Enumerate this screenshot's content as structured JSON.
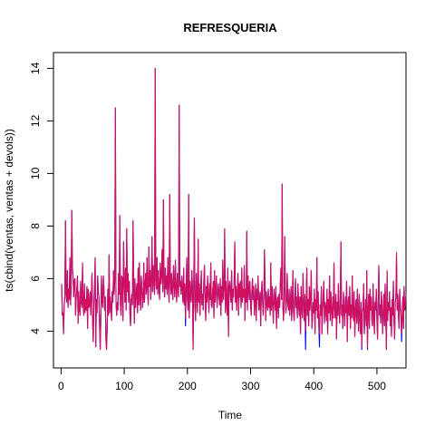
{
  "chart_data": {
    "type": "line",
    "title": "REFRESQUERIA",
    "xlabel": "Time",
    "ylabel": "ts(cbind(ventas, ventas + devols))",
    "xlim": [
      -12,
      546
    ],
    "ylim": [
      2.6,
      14.6
    ],
    "x_ticks": [
      0,
      100,
      200,
      300,
      400,
      500
    ],
    "y_ticks": [
      4,
      6,
      8,
      10,
      12,
      14
    ],
    "grid": false,
    "legend": "none",
    "x_start": 1,
    "series": [
      {
        "color": "#0000ff",
        "values": [
          5.8,
          4.6,
          4.7,
          3.9,
          5.0,
          5.3,
          8.2,
          5.4,
          5.1,
          6.3,
          4.9,
          5.6,
          5.2,
          6.8,
          5.0,
          5.8,
          8.6,
          6.4,
          6.1,
          5.3,
          5.9,
          6.0,
          4.6,
          5.3,
          5.6,
          6.1,
          4.3,
          5.5,
          4.8,
          4.6,
          5.9,
          5.1,
          4.9,
          6.6,
          5.0,
          4.6,
          5.8,
          4.7,
          5.2,
          4.8,
          5.7,
          4.1,
          5.6,
          4.9,
          5.0,
          5.5,
          4.6,
          5.4,
          6.2,
          4.3,
          3.6,
          5.1,
          5.7,
          6.8,
          3.4,
          5.2,
          4.7,
          6.1,
          5.5,
          5.3,
          4.2,
          3.3,
          4.5,
          6.1,
          5.1,
          4.9,
          6.1,
          5.6,
          4.8,
          5.3,
          3.7,
          3.3,
          4.1,
          5.6,
          4.6,
          6.9,
          4.7,
          5.3,
          5.0,
          4.4,
          5.5,
          5.1,
          6.3,
          5.4,
          5.9,
          12.5,
          5.1,
          4.6,
          5.1,
          4.8,
          6.2,
          5.4,
          8.4,
          5.0,
          4.6,
          6.1,
          6.0,
          4.4,
          7.4,
          5.9,
          5.1,
          6.4,
          4.8,
          7.9,
          5.5,
          6.2,
          5.1,
          5.9,
          4.7,
          4.2,
          5.2,
          5.4,
          5.0,
          8.2,
          5.8,
          4.3,
          6.0,
          4.9,
          5.4,
          5.8,
          4.7,
          6.4,
          5.0,
          6.6,
          5.3,
          4.8,
          6.1,
          5.6,
          4.9,
          5.2,
          6.6,
          5.1,
          5.7,
          6.2,
          5.4,
          6.8,
          5.6,
          5.0,
          7.2,
          5.7,
          6.3,
          5.2,
          5.9,
          7.6,
          5.5,
          6.5,
          5.8,
          5.4,
          14.0,
          5.9,
          5.6,
          6.8,
          5.4,
          6.3,
          5.7,
          5.2,
          6.6,
          5.8,
          6.1,
          7.1,
          5.5,
          9.0,
          5.8,
          5.3,
          6.4,
          5.6,
          6.1,
          5.4,
          6.8,
          5.7,
          5.1,
          9.2,
          5.9,
          5.4,
          6.2,
          5.6,
          5.2,
          6.5,
          5.8,
          5.3,
          6.7,
          5.6,
          5.1,
          6.2,
          5.7,
          5.3,
          12.6,
          5.7,
          5.9,
          5.4,
          6.1,
          5.6,
          5.1,
          6.4,
          5.0,
          5.8,
          4.2,
          5.6,
          6.8,
          5.2,
          4.8,
          9.2,
          4.5,
          5.9,
          5.4,
          5.1,
          6.3,
          5.7,
          3.3,
          5.6,
          8.3,
          5.0,
          4.4,
          6.2,
          5.3,
          4.7,
          7.5,
          5.1,
          5.8,
          4.6,
          5.5,
          6.3,
          5.0,
          5.4,
          4.8,
          5.9,
          6.5,
          5.3,
          4.4,
          5.7,
          5.1,
          6.1,
          5.4,
          4.7,
          5.8,
          5.2,
          6.6,
          5.0,
          4.9,
          5.5,
          5.9,
          4.5,
          6.3,
          5.1,
          5.7,
          6.1,
          4.9,
          5.4,
          5.8,
          5.3,
          5.0,
          6.0,
          4.6,
          5.7,
          5.1,
          6.7,
          5.2,
          5.6,
          7.9,
          4.7,
          5.9,
          5.2,
          4.6,
          6.4,
          3.8,
          5.7,
          5.9,
          5.4,
          5.1,
          6.3,
          4.8,
          5.6,
          5.3,
          5.9,
          7.4,
          5.1,
          5.7,
          4.8,
          5.5,
          6.2,
          4.6,
          5.8,
          5.3,
          5.9,
          4.9,
          6.4,
          5.1,
          5.6,
          5.3,
          6.5,
          4.4,
          5.6,
          5.1,
          7.8,
          4.8,
          6.1,
          5.6,
          5.2,
          5.9,
          5.0,
          4.6,
          5.5,
          6.0,
          5.2,
          5.7,
          4.6,
          5.0,
          5.8,
          4.4,
          5.6,
          5.2,
          6.1,
          4.8,
          5.0,
          5.5,
          4.2,
          5.4,
          5.9,
          5.1,
          4.6,
          5.3,
          7.1,
          5.7,
          4.4,
          5.5,
          5.0,
          4.8,
          5.6,
          4.9,
          5.3,
          4.6,
          6.6,
          4.8,
          5.7,
          5.0,
          4.3,
          5.6,
          5.2,
          4.8,
          5.7,
          4.1,
          5.1,
          5.3,
          4.5,
          5.4,
          4.9,
          5.8,
          6.4,
          5.2,
          9.6,
          5.1,
          4.4,
          4.9,
          7.6,
          5.5,
          4.7,
          5.2,
          6.2,
          5.0,
          4.8,
          5.6,
          4.6,
          5.0,
          5.7,
          4.4,
          5.1,
          6.3,
          4.7,
          4.4,
          5.2,
          6.0,
          4.9,
          5.3,
          4.5,
          5.8,
          5.0,
          4.6,
          5.3,
          3.9,
          5.7,
          4.9,
          4.5,
          6.2,
          5.1,
          4.4,
          5.4,
          3.3,
          5.0,
          6.4,
          4.6,
          5.2,
          4.2,
          5.7,
          4.8,
          5.3,
          6.3,
          4.1,
          4.5,
          5.1,
          4.7,
          5.6,
          3.9,
          5.2,
          4.8,
          6.8,
          4.5,
          5.5,
          4.2,
          3.4,
          5.0,
          4.6,
          5.7,
          3.9,
          4.8,
          5.4,
          5.9,
          4.3,
          5.1,
          4.9,
          4.4,
          5.6,
          3.9,
          5.2,
          4.7,
          6.1,
          4.4,
          5.5,
          4.8,
          4.2,
          5.3,
          4.5,
          6.6,
          4.9,
          4.5,
          5.4,
          3.7,
          5.1,
          4.6,
          5.8,
          4.8,
          4.3,
          5.2,
          7.4,
          4.6,
          5.0,
          4.1,
          5.5,
          4.8,
          4.2,
          5.3,
          4.7,
          5.9,
          3.6,
          4.9,
          5.3,
          4.6,
          5.7,
          4.1,
          5.0,
          4.5,
          6.1,
          4.7,
          4.4,
          5.5,
          3.8,
          4.8,
          5.2,
          4.3,
          5.6,
          4.7,
          4.0,
          5.4,
          4.6,
          3.9,
          5.1,
          3.3,
          4.7,
          4.9,
          5.8,
          3.9,
          4.6,
          5.2,
          4.2,
          6.3,
          3.3,
          4.7,
          5.4,
          4.1,
          5.6,
          4.8,
          5.3,
          4.4,
          4.2,
          5.8,
          4.6,
          3.9,
          5.1,
          4.8,
          5.6,
          4.4,
          3.7,
          5.2,
          6.5,
          4.6,
          5.0,
          4.3,
          5.5,
          5.0,
          3.9,
          4.7,
          5.4,
          4.2,
          5.8,
          4.5,
          3.3,
          6.3,
          4.4,
          5.1,
          4.8,
          5.5,
          4.2,
          4.9,
          3.8,
          5.2,
          4.6,
          5.9,
          4.4,
          3.7,
          5.1,
          5.3,
          6.9,
          4.8,
          5.4,
          4.6,
          4.1,
          5.6,
          5.0,
          4.7,
          3.6,
          4.5,
          5.3,
          4.1,
          5.7,
          4.8,
          5.0,
          5.4
        ]
      },
      {
        "color": "#e8114b",
        "values": [
          5.8,
          4.6,
          4.7,
          3.9,
          5.0,
          5.3,
          8.2,
          5.4,
          5.1,
          6.3,
          4.9,
          5.6,
          5.2,
          6.8,
          5.0,
          5.8,
          8.6,
          6.4,
          6.1,
          5.3,
          5.9,
          6.0,
          4.6,
          5.3,
          5.6,
          6.1,
          4.3,
          5.5,
          4.8,
          4.6,
          5.9,
          5.1,
          4.9,
          6.6,
          5.0,
          4.6,
          5.8,
          4.7,
          5.2,
          4.8,
          5.7,
          4.1,
          5.6,
          4.9,
          5.0,
          5.5,
          4.6,
          5.4,
          6.2,
          4.3,
          3.6,
          5.1,
          5.7,
          6.8,
          3.4,
          5.2,
          4.7,
          6.1,
          5.5,
          5.3,
          4.2,
          3.3,
          4.5,
          6.1,
          5.1,
          4.9,
          6.1,
          5.6,
          4.8,
          5.3,
          3.7,
          3.3,
          4.1,
          5.6,
          4.6,
          6.9,
          4.7,
          5.3,
          5.0,
          4.4,
          5.5,
          5.1,
          6.3,
          5.4,
          5.9,
          12.5,
          5.1,
          4.6,
          5.1,
          4.8,
          6.2,
          5.4,
          8.4,
          5.0,
          4.6,
          6.1,
          6.0,
          4.4,
          7.4,
          5.9,
          5.1,
          6.4,
          4.8,
          7.9,
          5.5,
          6.2,
          5.1,
          5.9,
          4.7,
          4.2,
          5.2,
          5.4,
          5.0,
          8.2,
          5.8,
          4.3,
          6.0,
          4.9,
          5.4,
          5.8,
          4.7,
          6.4,
          5.0,
          6.6,
          5.3,
          4.8,
          6.1,
          5.6,
          4.9,
          5.2,
          6.6,
          5.1,
          5.7,
          6.2,
          5.4,
          6.8,
          5.6,
          5.0,
          7.2,
          5.7,
          6.3,
          5.2,
          5.9,
          7.6,
          5.5,
          6.5,
          5.8,
          5.4,
          14.0,
          5.9,
          5.6,
          6.8,
          5.4,
          6.3,
          5.7,
          5.2,
          6.6,
          5.8,
          6.1,
          7.1,
          5.5,
          9.0,
          5.8,
          5.3,
          6.4,
          5.6,
          6.1,
          5.4,
          6.8,
          5.7,
          5.1,
          9.2,
          5.9,
          5.4,
          6.2,
          5.6,
          5.2,
          6.5,
          5.8,
          5.3,
          6.7,
          5.6,
          5.1,
          6.2,
          5.7,
          5.3,
          12.6,
          5.7,
          5.9,
          5.4,
          6.1,
          5.6,
          5.1,
          6.4,
          5.0,
          5.8,
          4.5,
          5.6,
          6.8,
          5.2,
          4.8,
          9.2,
          4.5,
          5.9,
          5.4,
          5.1,
          6.3,
          5.7,
          3.3,
          5.6,
          8.3,
          5.0,
          4.4,
          6.2,
          5.3,
          4.7,
          7.5,
          5.1,
          5.8,
          4.6,
          5.5,
          6.3,
          5.0,
          5.4,
          4.8,
          5.9,
          6.5,
          5.3,
          4.4,
          5.7,
          5.1,
          6.1,
          5.4,
          4.7,
          5.8,
          5.2,
          6.6,
          5.0,
          4.9,
          5.5,
          5.9,
          4.5,
          6.3,
          5.1,
          5.7,
          6.1,
          4.9,
          5.4,
          5.8,
          5.3,
          5.0,
          6.0,
          4.6,
          5.7,
          5.1,
          6.7,
          5.2,
          5.6,
          7.9,
          4.7,
          5.9,
          5.2,
          4.6,
          6.4,
          3.8,
          5.7,
          5.9,
          5.4,
          5.1,
          6.3,
          4.8,
          5.6,
          5.3,
          5.9,
          7.4,
          5.1,
          5.7,
          4.8,
          5.5,
          6.2,
          4.6,
          5.8,
          5.3,
          5.9,
          4.9,
          6.4,
          5.1,
          5.6,
          5.3,
          6.5,
          4.4,
          5.6,
          5.1,
          7.8,
          4.8,
          6.1,
          5.6,
          5.2,
          5.9,
          5.0,
          4.6,
          5.5,
          6.0,
          5.2,
          5.7,
          4.6,
          5.0,
          5.8,
          4.4,
          5.6,
          5.2,
          6.1,
          4.8,
          5.0,
          5.5,
          4.2,
          5.4,
          5.9,
          5.1,
          4.6,
          5.3,
          7.1,
          5.7,
          4.4,
          5.5,
          5.0,
          4.8,
          5.6,
          4.9,
          5.3,
          4.6,
          6.6,
          4.8,
          5.7,
          5.0,
          4.3,
          5.6,
          5.2,
          4.8,
          5.7,
          4.1,
          5.1,
          5.3,
          4.5,
          5.4,
          4.9,
          5.8,
          6.4,
          5.2,
          9.6,
          5.1,
          4.4,
          4.9,
          7.6,
          5.5,
          4.7,
          5.2,
          6.2,
          5.0,
          4.8,
          5.6,
          4.6,
          5.0,
          5.7,
          4.4,
          5.1,
          6.3,
          4.7,
          4.4,
          5.2,
          6.0,
          4.9,
          5.3,
          4.5,
          5.8,
          5.0,
          4.6,
          5.3,
          3.9,
          5.7,
          4.9,
          4.5,
          6.2,
          5.1,
          4.4,
          5.4,
          4.0,
          5.0,
          6.4,
          4.6,
          5.2,
          4.2,
          5.7,
          4.8,
          5.3,
          6.3,
          4.1,
          4.5,
          5.1,
          4.7,
          5.6,
          3.9,
          5.2,
          4.8,
          6.8,
          4.5,
          5.5,
          4.2,
          3.9,
          5.0,
          4.6,
          5.7,
          3.9,
          4.8,
          5.4,
          5.9,
          4.3,
          5.1,
          4.9,
          4.4,
          5.6,
          3.9,
          5.2,
          4.7,
          6.1,
          4.4,
          5.5,
          4.8,
          4.2,
          5.3,
          4.5,
          6.6,
          4.9,
          4.5,
          5.4,
          3.7,
          5.1,
          4.6,
          5.8,
          4.8,
          4.3,
          5.2,
          7.4,
          4.6,
          5.0,
          4.1,
          5.5,
          4.8,
          4.2,
          5.3,
          4.7,
          5.9,
          3.6,
          4.9,
          5.3,
          4.6,
          5.7,
          4.1,
          5.0,
          4.5,
          6.1,
          4.7,
          4.4,
          5.5,
          3.8,
          4.8,
          5.2,
          4.3,
          5.6,
          4.7,
          4.0,
          5.4,
          4.6,
          3.9,
          5.1,
          3.4,
          4.7,
          4.9,
          5.8,
          3.9,
          4.6,
          5.2,
          4.2,
          6.3,
          3.4,
          4.7,
          5.4,
          4.1,
          5.6,
          4.8,
          5.3,
          4.4,
          4.2,
          5.8,
          4.6,
          3.9,
          5.1,
          4.8,
          5.6,
          4.4,
          3.7,
          5.2,
          6.5,
          4.6,
          5.0,
          4.3,
          5.5,
          5.0,
          3.9,
          4.7,
          5.4,
          4.2,
          5.8,
          4.5,
          3.3,
          6.3,
          4.4,
          5.1,
          4.8,
          5.5,
          4.2,
          4.9,
          3.8,
          5.2,
          4.6,
          5.9,
          4.4,
          3.7,
          5.1,
          5.3,
          7.0,
          4.8,
          5.4,
          4.6,
          4.1,
          5.6,
          5.0,
          4.7,
          3.9,
          4.5,
          5.3,
          4.1,
          5.7,
          4.8,
          5.0,
          5.4
        ]
      }
    ]
  }
}
